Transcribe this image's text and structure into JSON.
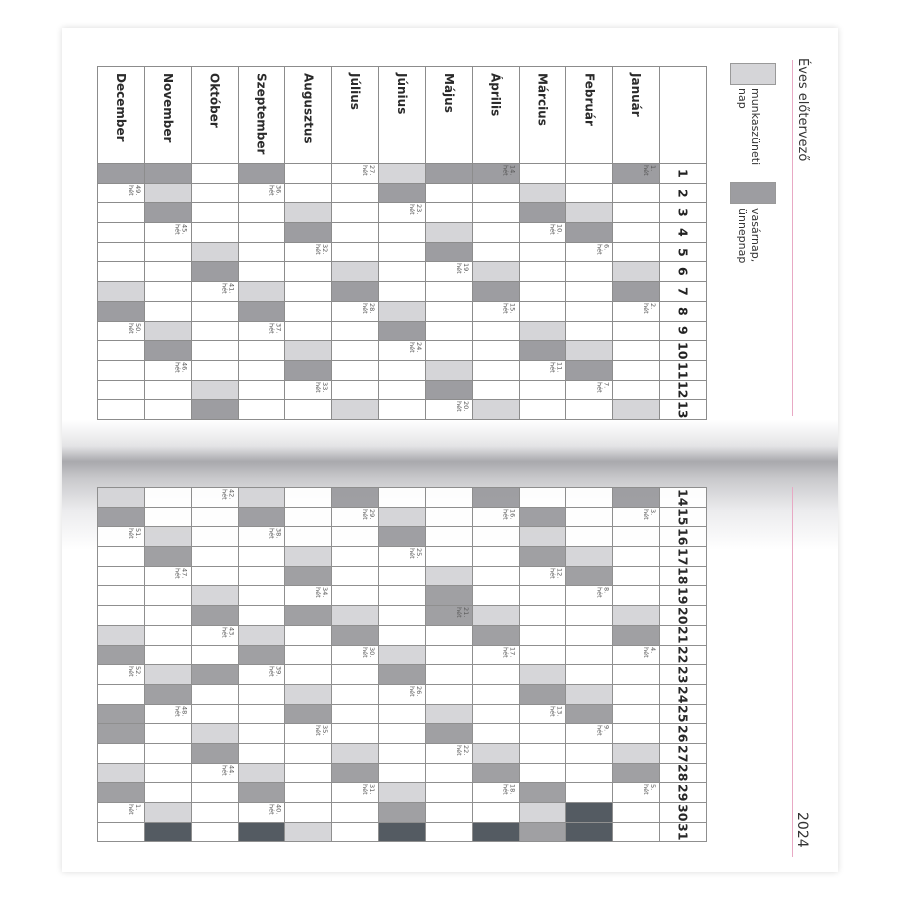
{
  "title": "Éves előtervező",
  "year": "2024",
  "legend": {
    "rest_day": {
      "label": "munkaszüneti nap",
      "color": "#d5d5d8"
    },
    "sunday_holiday": {
      "label": "vasárnap, ünnepnap",
      "color": "#9d9da1"
    }
  },
  "colors": {
    "invalid_day": "#4f565d",
    "accent_line": "#e8a9c4"
  },
  "week_suffix": "hét",
  "months": [
    {
      "name": "Január",
      "days": 31,
      "light": [
        6,
        13,
        20,
        27
      ],
      "dark": [
        1,
        7,
        14,
        21,
        28
      ],
      "weeks": {
        "1": "1.",
        "8": "2.",
        "15": "3.",
        "22": "4.",
        "29": "5."
      }
    },
    {
      "name": "Február",
      "days": 29,
      "light": [
        3,
        10,
        17,
        24
      ],
      "dark": [
        4,
        11,
        18,
        25
      ],
      "weeks": {
        "5": "6.",
        "12": "7.",
        "19": "8.",
        "26": "9."
      }
    },
    {
      "name": "Március",
      "days": 31,
      "light": [
        2,
        9,
        16,
        23,
        30
      ],
      "dark": [
        3,
        10,
        15,
        17,
        24,
        29,
        31
      ],
      "weeks": {
        "4": "10.",
        "11": "11.",
        "18": "12.",
        "25": "13."
      }
    },
    {
      "name": "Április",
      "days": 30,
      "light": [
        6,
        13,
        20,
        27
      ],
      "dark": [
        1,
        7,
        14,
        21,
        28
      ],
      "weeks": {
        "1": "14.",
        "8": "15.",
        "15": "16.",
        "22": "17.",
        "29": "18."
      }
    },
    {
      "name": "Május",
      "days": 31,
      "light": [
        4,
        11,
        18,
        25
      ],
      "dark": [
        1,
        5,
        12,
        19,
        20,
        26
      ],
      "weeks": {
        "6": "19.",
        "13": "20.",
        "20": "21.",
        "27": "22."
      }
    },
    {
      "name": "Június",
      "days": 30,
      "light": [
        1,
        8,
        15,
        22,
        29
      ],
      "dark": [
        2,
        9,
        16,
        23,
        30
      ],
      "weeks": {
        "3": "23.",
        "10": "24.",
        "17": "25.",
        "24": "26."
      }
    },
    {
      "name": "Július",
      "days": 31,
      "light": [
        6,
        13,
        20,
        27
      ],
      "dark": [
        7,
        14,
        21,
        28
      ],
      "weeks": {
        "1": "27.",
        "8": "28.",
        "15": "29.",
        "22": "30.",
        "29": "31."
      }
    },
    {
      "name": "Augusztus",
      "days": 31,
      "light": [
        3,
        10,
        17,
        24,
        31
      ],
      "dark": [
        4,
        11,
        18,
        20,
        25
      ],
      "weeks": {
        "5": "32.",
        "12": "33.",
        "19": "34.",
        "26": "35."
      }
    },
    {
      "name": "Szeptember",
      "days": 30,
      "light": [
        7,
        14,
        21,
        28
      ],
      "dark": [
        1,
        8,
        15,
        22,
        29
      ],
      "weeks": {
        "2": "36.",
        "9": "37.",
        "16": "38.",
        "23": "39.",
        "30": "40."
      }
    },
    {
      "name": "Október",
      "days": 31,
      "light": [
        5,
        12,
        19,
        26
      ],
      "dark": [
        6,
        13,
        20,
        23,
        27
      ],
      "weeks": {
        "7": "41.",
        "14": "42.",
        "21": "43.",
        "28": "44."
      }
    },
    {
      "name": "November",
      "days": 30,
      "light": [
        2,
        9,
        16,
        23,
        30
      ],
      "dark": [
        1,
        3,
        10,
        17,
        24
      ],
      "weeks": {
        "4": "45.",
        "11": "46.",
        "18": "47.",
        "25": "48."
      }
    },
    {
      "name": "December",
      "days": 31,
      "light": [
        7,
        14,
        21,
        28
      ],
      "dark": [
        1,
        8,
        15,
        22,
        25,
        26,
        29
      ],
      "weeks": {
        "2": "49.",
        "9": "50.",
        "16": "51.",
        "23": "52.",
        "30": "1."
      }
    }
  ]
}
